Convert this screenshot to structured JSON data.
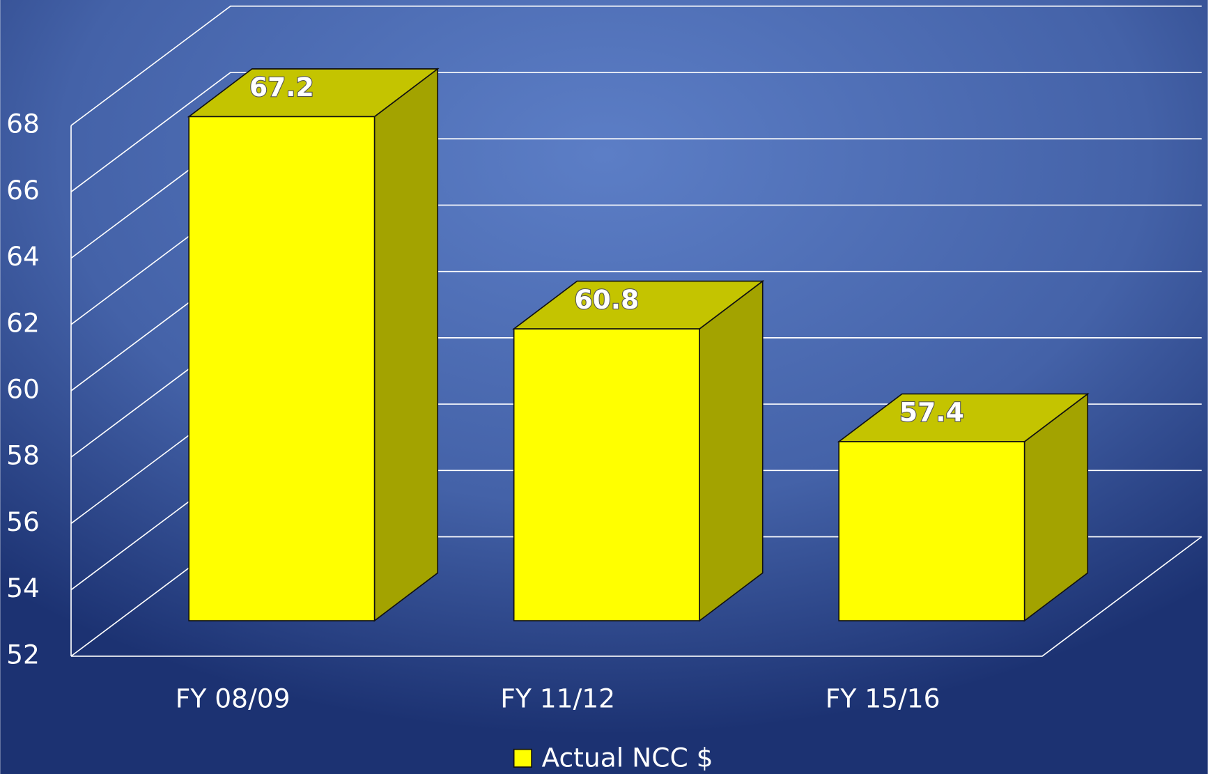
{
  "chart_data": {
    "type": "bar",
    "categories": [
      "FY 08/09",
      "FY 11/12",
      "FY 15/16"
    ],
    "series": [
      {
        "name": "Actual NCC $",
        "color": "#ffff00",
        "values": [
          67.2,
          60.8,
          57.4
        ]
      }
    ],
    "ylim": [
      52,
      68
    ],
    "yticks": [
      52,
      54,
      56,
      58,
      60,
      62,
      64,
      66,
      68
    ],
    "grid": true,
    "legend": "bottom"
  }
}
